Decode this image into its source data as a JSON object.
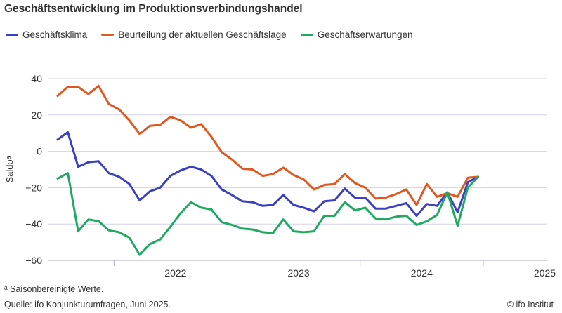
{
  "title": "Geschäftsentwicklung im Produktionsverbindungshandel",
  "footnote": "ᵃ Saisonbereinigte Werte.",
  "source": "Quelle: ifo Konjunkturumfragen, Juni 2025.",
  "credit": "© ifo Institut",
  "chart_data": {
    "type": "line",
    "title": "Geschäftsentwicklung im Produktionsverbindungshandel",
    "ylabel": "Saldoᵃ",
    "xlabel": "",
    "ylim": [
      -60,
      40
    ],
    "yticks": [
      "40",
      "20",
      "0",
      "−20",
      "−40",
      "−60"
    ],
    "ytick_values": [
      40,
      20,
      0,
      -20,
      -40,
      -60
    ],
    "xticks": [
      "2022",
      "2023",
      "2024",
      "2025"
    ],
    "grid": true,
    "legend_position": "top",
    "x_start": "2021-07",
    "x_end": "2025-05",
    "series": [
      {
        "name": "Geschäftsklima",
        "color": "#3a3fc4",
        "values": [
          6.5,
          10.5,
          -8.5,
          -6,
          -5.5,
          -12,
          -14,
          -18,
          -27,
          -22,
          -20,
          -13.5,
          -10.5,
          -8.5,
          -10,
          -13.5,
          -21,
          -24,
          -27.5,
          -28,
          -30,
          -29.5,
          -24,
          -29.5,
          -31,
          -33,
          -27.5,
          -27,
          -20.5,
          -25.5,
          -25.5,
          -31.5,
          -31.5,
          -30,
          -28.5,
          -35.5,
          -29,
          -30,
          -22.5,
          -33.5,
          -17,
          -14
        ]
      },
      {
        "name": "Beurteilung der aktuellen Geschäftslage",
        "color": "#e2571f",
        "values": [
          30.5,
          35.5,
          35.5,
          31.5,
          36,
          26,
          23,
          17,
          9.5,
          14,
          14.5,
          19,
          17,
          13,
          15,
          8,
          -0.5,
          -4.5,
          -9.5,
          -10,
          -13.5,
          -12.5,
          -9,
          -13,
          -15.5,
          -21,
          -18.5,
          -18,
          -12.5,
          -17.5,
          -20,
          -26,
          -25.5,
          -23.5,
          -21,
          -29.5,
          -18,
          -25,
          -23,
          -25,
          -14.5,
          -14
        ]
      },
      {
        "name": "Geschäftserwartungen",
        "color": "#1faa62",
        "values": [
          -15,
          -12,
          -44,
          -37.5,
          -38.5,
          -43.5,
          -44.5,
          -47.5,
          -57,
          -51,
          -48.5,
          -41.5,
          -34,
          -28,
          -31,
          -32,
          -39,
          -40.5,
          -42.5,
          -43,
          -44.5,
          -45,
          -37.5,
          -44,
          -44.5,
          -44,
          -35.5,
          -35.5,
          -28,
          -32.5,
          -31,
          -37,
          -37.5,
          -36,
          -35.5,
          -40.5,
          -38.5,
          -35,
          -22.5,
          -41,
          -20,
          -14
        ]
      }
    ]
  }
}
